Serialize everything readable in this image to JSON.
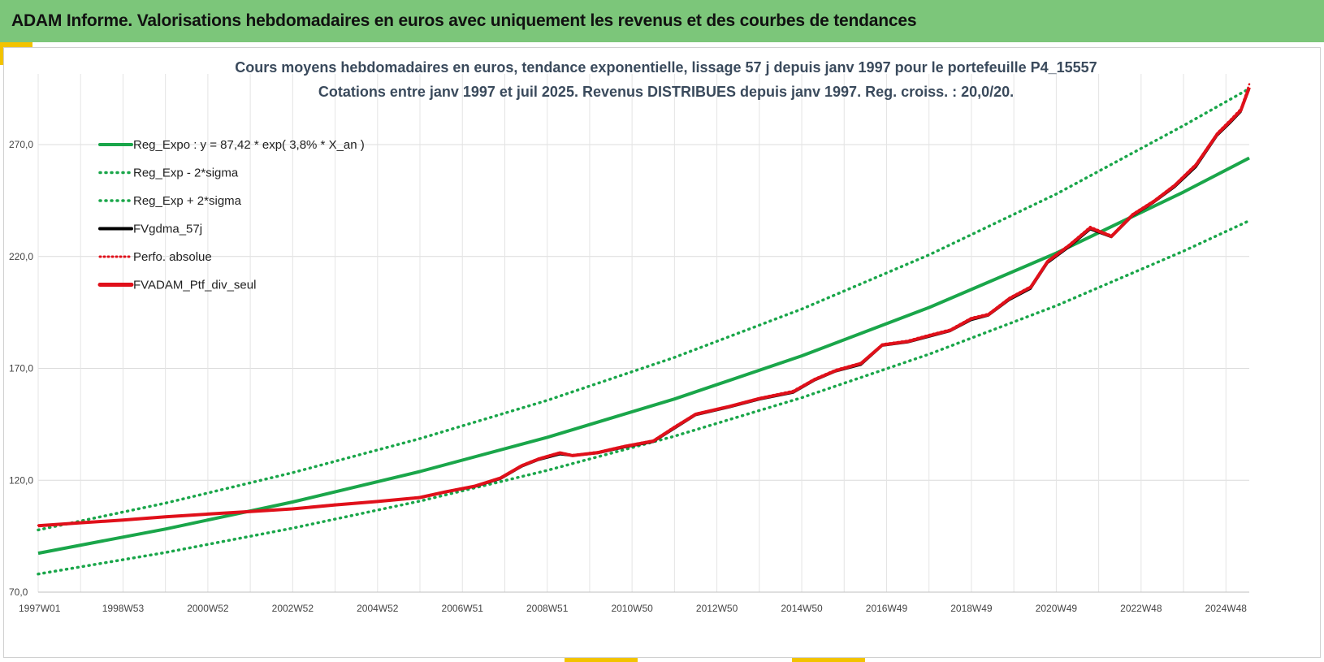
{
  "header": {
    "title": "ADAM Informe. Valorisations hebdomadaires en euros avec uniquement les revenus et des courbes de tendances"
  },
  "chart_data": {
    "type": "line",
    "title": "Cours moyens hebdomadaires  en euros, tendance exponentielle, lissage 57 j depuis janv 1997 pour le portefeuille P4_15557",
    "subtitle": "Cotations entre janv 1997 et juil 2025. Revenus DISTRIBUES depuis janv 1997. Reg. croiss. : 20,0/20.",
    "xlabel": "",
    "ylabel": "",
    "x_range": [
      1997.0,
      2025.55
    ],
    "ylim": [
      70,
      300
    ],
    "yticks": [
      70,
      120,
      170,
      220,
      270
    ],
    "ytick_labels": [
      "70,0",
      "120,0",
      "170,0",
      "220,0",
      "270,0"
    ],
    "xticks": [
      {
        "label": "1997W01",
        "year": 1997.0
      },
      {
        "label": "1998W53",
        "year": 1999.0
      },
      {
        "label": "2000W52",
        "year": 2001.0
      },
      {
        "label": "2002W52",
        "year": 2003.0
      },
      {
        "label": "2004W52",
        "year": 2005.0
      },
      {
        "label": "2006W51",
        "year": 2007.0
      },
      {
        "label": "2008W51",
        "year": 2009.0
      },
      {
        "label": "2010W50",
        "year": 2011.0
      },
      {
        "label": "2012W50",
        "year": 2013.0
      },
      {
        "label": "2014W50",
        "year": 2015.0
      },
      {
        "label": "2016W49",
        "year": 2017.0
      },
      {
        "label": "2018W49",
        "year": 2019.0
      },
      {
        "label": "2020W49",
        "year": 2021.0
      },
      {
        "label": "2022W48",
        "year": 2023.0
      },
      {
        "label": "2024W48",
        "year": 2025.0
      }
    ],
    "grid": "vertical and horizontal",
    "legend_position": "top-left",
    "series": [
      {
        "name": "Reg_Expo : y = 87,42 * exp( 3,8% *  X_an )",
        "color": "#1aa64a",
        "style": "solid",
        "x": [
          1997,
          2000,
          2003,
          2006,
          2009,
          2012,
          2015,
          2018,
          2021,
          2024,
          2025.55
        ],
        "y": [
          87.4,
          98.2,
          110.3,
          123.9,
          139.2,
          156.3,
          175.6,
          197.2,
          221.5,
          248.8,
          264.0
        ]
      },
      {
        "name": "Reg_Exp - 2*sigma",
        "color": "#1aa64a",
        "style": "dotted",
        "x": [
          1997,
          2000,
          2003,
          2006,
          2009,
          2012,
          2015,
          2018,
          2021,
          2024,
          2025.55
        ],
        "y": [
          78.1,
          87.7,
          98.6,
          110.7,
          124.4,
          139.7,
          156.9,
          176.3,
          198.0,
          222.4,
          236.0
        ]
      },
      {
        "name": "Reg_Exp + 2*sigma",
        "color": "#1aa64a",
        "style": "dotted",
        "x": [
          1997,
          2000,
          2003,
          2006,
          2009,
          2012,
          2015,
          2018,
          2021,
          2024,
          2025.55
        ],
        "y": [
          97.8,
          109.8,
          123.4,
          138.6,
          155.7,
          174.9,
          196.5,
          220.7,
          247.9,
          278.5,
          295.0
        ]
      },
      {
        "name": "FVgdma_57j",
        "color": "#000000",
        "style": "solid",
        "x": [
          1997,
          1998,
          1999,
          2000,
          2001,
          2002,
          2003,
          2004,
          2005,
          2006,
          2006.6,
          2007.3,
          2007.9,
          2008.4,
          2008.8,
          2009.3,
          2009.6,
          2010.2,
          2010.8,
          2011.5,
          2012.0,
          2012.5,
          2013.3,
          2014.0,
          2014.8,
          2015.3,
          2015.8,
          2016.4,
          2016.9,
          2017.5,
          2018.0,
          2018.5,
          2019.0,
          2019.4,
          2019.9,
          2020.4,
          2020.8,
          2021.3,
          2021.8,
          2022.3,
          2022.8,
          2023.3,
          2023.8,
          2024.3,
          2024.8,
          2025.1,
          2025.35,
          2025.55
        ],
        "y": [
          99.5,
          100.8,
          102.0,
          103.5,
          104.7,
          105.8,
          107.0,
          108.8,
          110.3,
          112.0,
          114.5,
          117.0,
          120.5,
          126.0,
          129.0,
          131.5,
          130.8,
          132.0,
          134.5,
          137.0,
          143.0,
          149.0,
          152.5,
          156.0,
          159.0,
          164.5,
          168.5,
          171.5,
          180.0,
          181.5,
          184.0,
          186.5,
          191.5,
          193.5,
          200.5,
          205.5,
          217.0,
          224.0,
          232.0,
          228.5,
          238.0,
          244.0,
          251.0,
          260.0,
          274.0,
          279.5,
          284.5,
          294.5
        ]
      },
      {
        "name": "Perfo. absolue",
        "color": "#e0101a",
        "style": "dotted",
        "x": [
          1997,
          1998,
          1999,
          2000,
          2001,
          2002,
          2003,
          2004,
          2005,
          2006,
          2006.6,
          2007.3,
          2007.9,
          2008.4,
          2008.8,
          2009.3,
          2009.6,
          2010.2,
          2010.8,
          2011.5,
          2012.0,
          2012.5,
          2013.3,
          2014.0,
          2014.8,
          2015.3,
          2015.8,
          2016.4,
          2016.9,
          2017.5,
          2018.0,
          2018.5,
          2019.0,
          2019.4,
          2019.9,
          2020.4,
          2020.8,
          2021.3,
          2021.8,
          2022.3,
          2022.8,
          2023.3,
          2023.8,
          2024.3,
          2024.8,
          2025.1,
          2025.35,
          2025.55
        ],
        "y": [
          99.8,
          101.0,
          102.3,
          103.8,
          105.0,
          106.2,
          107.3,
          109.2,
          110.6,
          112.5,
          115.0,
          117.6,
          121.2,
          126.8,
          129.8,
          132.5,
          131.3,
          132.7,
          135.3,
          137.8,
          144.0,
          149.8,
          153.2,
          156.8,
          160.0,
          165.3,
          169.4,
          172.5,
          180.8,
          182.4,
          185.0,
          187.4,
          192.6,
          194.4,
          201.6,
          206.7,
          218.2,
          225.2,
          233.3,
          229.4,
          239.0,
          245.0,
          252.2,
          261.5,
          275.3,
          281.0,
          286.0,
          297.0
        ]
      },
      {
        "name": "FVADAM_Ptf_div_seul",
        "color": "#e0101a",
        "style": "solid",
        "x": [
          1997,
          1998,
          1999,
          2000,
          2001,
          2002,
          2003,
          2004,
          2005,
          2006,
          2006.6,
          2007.3,
          2007.9,
          2008.4,
          2008.8,
          2009.3,
          2009.6,
          2010.2,
          2010.8,
          2011.5,
          2012.0,
          2012.5,
          2013.3,
          2014.0,
          2014.8,
          2015.3,
          2015.8,
          2016.4,
          2016.9,
          2017.5,
          2018.0,
          2018.5,
          2019.0,
          2019.4,
          2019.9,
          2020.4,
          2020.8,
          2021.3,
          2021.8,
          2022.3,
          2022.8,
          2023.3,
          2023.8,
          2024.3,
          2024.8,
          2025.1,
          2025.35,
          2025.55
        ],
        "y": [
          99.7,
          101.0,
          102.2,
          103.7,
          104.9,
          106.0,
          107.2,
          109.0,
          110.5,
          112.3,
          114.8,
          117.4,
          121.0,
          126.5,
          129.5,
          132.2,
          131.0,
          132.4,
          135.0,
          137.5,
          143.6,
          149.5,
          153.0,
          156.5,
          159.6,
          165.0,
          169.0,
          172.2,
          180.5,
          182.0,
          184.6,
          187.0,
          192.2,
          194.0,
          201.2,
          206.3,
          217.8,
          224.8,
          232.8,
          229.0,
          238.6,
          244.6,
          251.8,
          261.0,
          274.8,
          280.4,
          285.3,
          295.5
        ]
      }
    ]
  }
}
